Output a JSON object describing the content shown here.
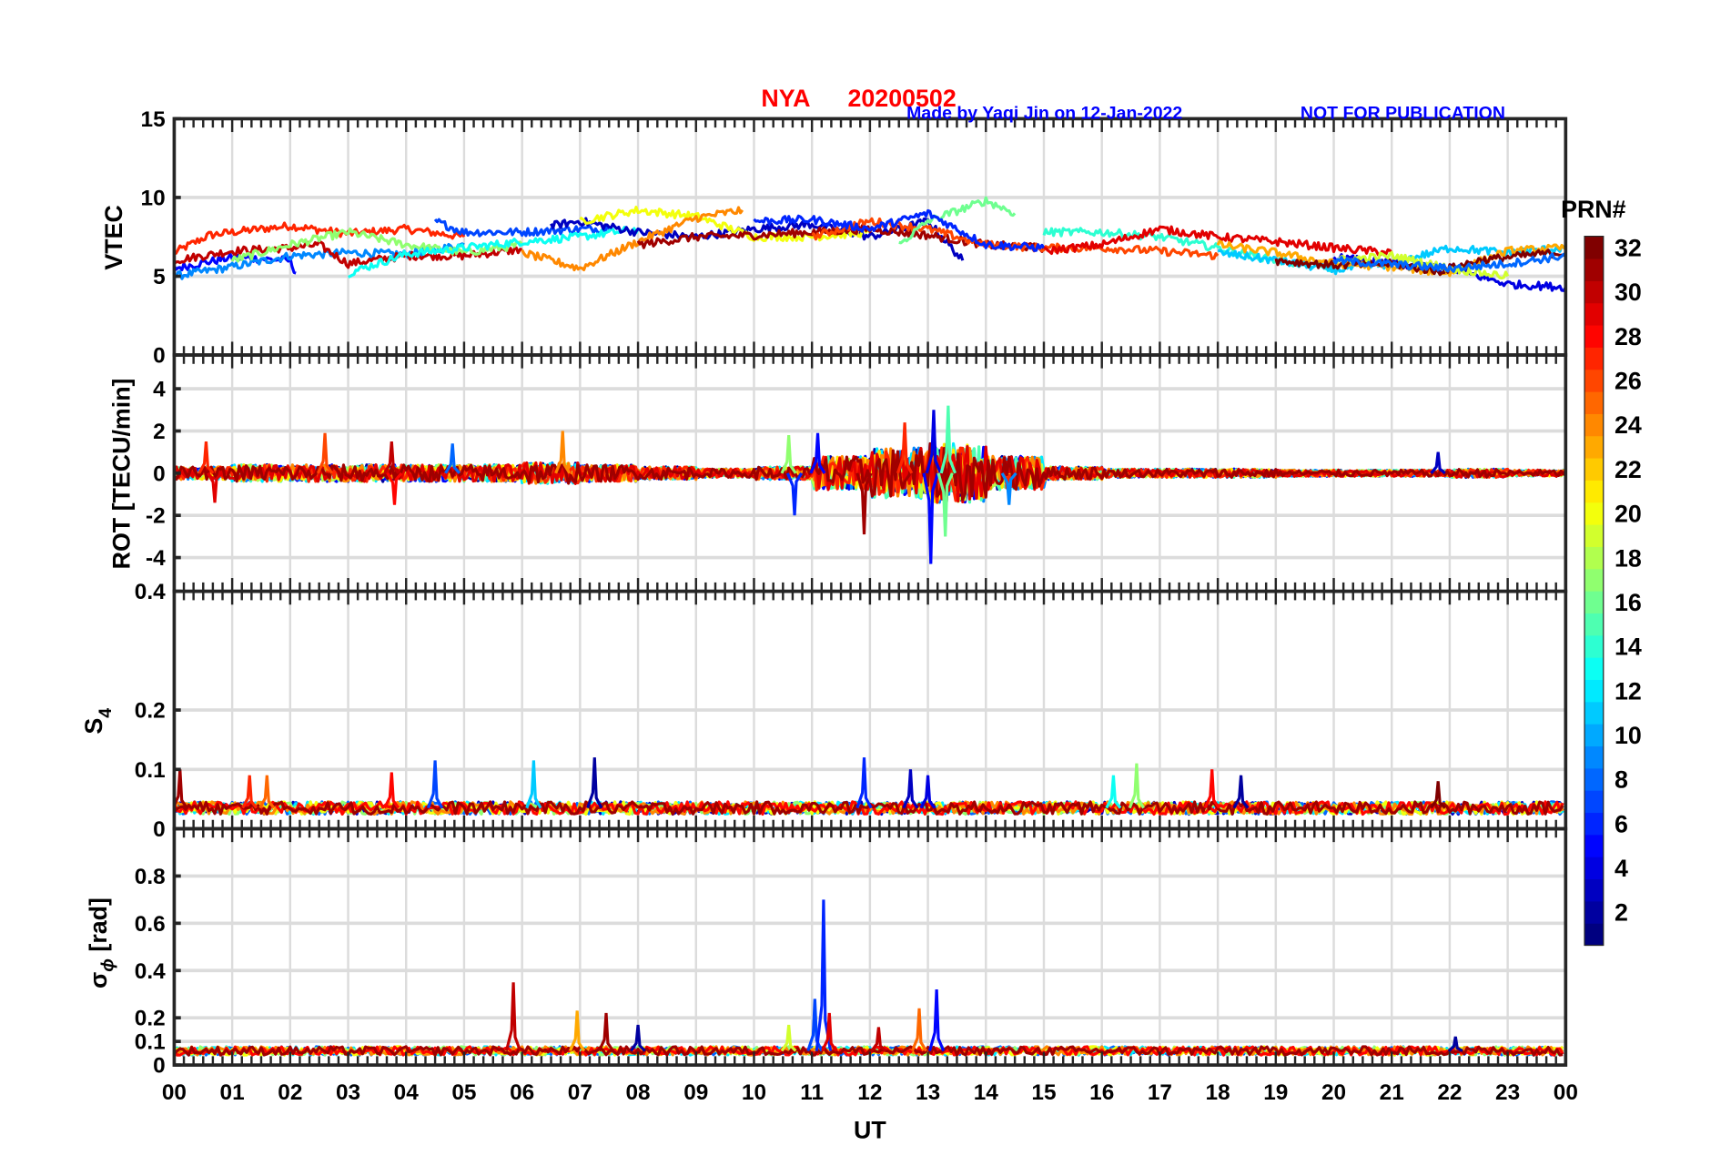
{
  "chart_data": {
    "type": "line",
    "title": {
      "station": "NYA",
      "date": "20200502",
      "credit": "Made by Yaqi Jin on 12-Jan-2022",
      "notice": "NOT FOR PUBLICATION"
    },
    "xlabel": "UT",
    "xlim": [
      0,
      24
    ],
    "xticks": [
      "00",
      "01",
      "02",
      "03",
      "04",
      "05",
      "06",
      "07",
      "08",
      "09",
      "10",
      "11",
      "12",
      "13",
      "14",
      "15",
      "16",
      "17",
      "18",
      "19",
      "20",
      "21",
      "22",
      "23",
      "00"
    ],
    "colorbar": {
      "label": "PRN#",
      "range": [
        1,
        32
      ],
      "ticks": [
        "2",
        "4",
        "6",
        "8",
        "10",
        "12",
        "14",
        "16",
        "18",
        "20",
        "22",
        "24",
        "26",
        "28",
        "30",
        "32"
      ],
      "colormap": "jet"
    },
    "panels": [
      {
        "id": "vtec",
        "ylabel": "VTEC",
        "ylim": [
          0,
          15
        ],
        "yticks": [
          0,
          5,
          10,
          15
        ],
        "ytick_labels": [
          "0",
          "5",
          "10",
          "15"
        ],
        "series": [
          {
            "prn": 27,
            "points": [
              [
                0,
                6.5
              ],
              [
                0.6,
                7.6
              ],
              [
                1,
                7.8
              ],
              [
                2,
                8.2
              ],
              [
                3,
                7.7
              ],
              [
                4,
                8.0
              ],
              [
                5,
                7.5
              ]
            ]
          },
          {
            "prn": 5,
            "points": [
              [
                0,
                5.5
              ],
              [
                1,
                6.2
              ],
              [
                2,
                6.0
              ],
              [
                2.1,
                5.2
              ]
            ]
          },
          {
            "prn": 9,
            "points": [
              [
                0,
                5.0
              ],
              [
                1,
                5.6
              ],
              [
                2,
                6.3
              ],
              [
                3,
                6.5
              ],
              [
                4,
                6.4
              ],
              [
                5,
                7.0
              ]
            ]
          },
          {
            "prn": 30,
            "points": [
              [
                0,
                6.0
              ],
              [
                1,
                6.6
              ],
              [
                2,
                6.8
              ],
              [
                2.5,
                7.0
              ],
              [
                3,
                5.8
              ],
              [
                4,
                6.3
              ],
              [
                5,
                6.3
              ],
              [
                6,
                6.7
              ]
            ]
          },
          {
            "prn": 17,
            "points": [
              [
                1,
                6.0
              ],
              [
                2,
                7.0
              ],
              [
                3,
                7.8
              ],
              [
                4,
                7.0
              ],
              [
                5,
                6.5
              ],
              [
                6,
                7.0
              ]
            ]
          },
          {
            "prn": 7,
            "points": [
              [
                4.5,
                8.5
              ],
              [
                5,
                7.8
              ],
              [
                6,
                7.8
              ],
              [
                7,
                8.0
              ],
              [
                7.5,
                8.0
              ]
            ]
          },
          {
            "prn": 13,
            "points": [
              [
                3,
                5.2
              ],
              [
                4,
                6.4
              ],
              [
                5,
                6.8
              ],
              [
                6,
                7.2
              ],
              [
                7,
                7.5
              ],
              [
                8,
                8.0
              ]
            ]
          },
          {
            "prn": 3,
            "points": [
              [
                6.5,
                8.2
              ],
              [
                7,
                8.5
              ],
              [
                8,
                7.8
              ],
              [
                9,
                7.5
              ],
              [
                10,
                8.0
              ],
              [
                11,
                8.3
              ],
              [
                12,
                7.5
              ],
              [
                13,
                8.5
              ],
              [
                13.6,
                6.0
              ]
            ]
          },
          {
            "prn": 20,
            "points": [
              [
                7,
                8.5
              ],
              [
                8,
                9.2
              ],
              [
                9,
                8.8
              ],
              [
                10,
                7.5
              ],
              [
                11,
                7.5
              ],
              [
                12,
                7.8
              ]
            ]
          },
          {
            "prn": 24,
            "points": [
              [
                6,
                6.5
              ],
              [
                7,
                5.5
              ],
              [
                8,
                7.2
              ],
              [
                9,
                8.7
              ],
              [
                9.8,
                9.2
              ]
            ]
          },
          {
            "prn": 31,
            "points": [
              [
                8,
                7.0
              ],
              [
                9,
                7.5
              ],
              [
                10,
                7.6
              ],
              [
                11,
                7.8
              ],
              [
                12,
                8.0
              ],
              [
                13,
                7.6
              ],
              [
                14,
                7.0
              ],
              [
                15,
                6.8
              ]
            ]
          },
          {
            "prn": 26,
            "points": [
              [
                11,
                7.5
              ],
              [
                12,
                8.5
              ],
              [
                13,
                8.0
              ],
              [
                14,
                7.0
              ],
              [
                15,
                6.8
              ],
              [
                16,
                6.8
              ],
              [
                17,
                6.6
              ],
              [
                18,
                6.3
              ]
            ]
          },
          {
            "prn": 16,
            "points": [
              [
                12.5,
                7.0
              ],
              [
                13,
                8.5
              ],
              [
                14,
                9.8
              ],
              [
                14.5,
                9.0
              ]
            ]
          },
          {
            "prn": 6,
            "points": [
              [
                10,
                8.5
              ],
              [
                11,
                8.6
              ],
              [
                12,
                8.0
              ],
              [
                13,
                9.0
              ],
              [
                14,
                7.0
              ],
              [
                15,
                6.8
              ]
            ]
          },
          {
            "prn": 14,
            "points": [
              [
                15,
                7.8
              ],
              [
                16,
                7.8
              ],
              [
                17,
                7.5
              ],
              [
                18,
                6.8
              ],
              [
                19,
                6.0
              ],
              [
                20,
                5.5
              ]
            ]
          },
          {
            "prn": 29,
            "points": [
              [
                15,
                6.6
              ],
              [
                16,
                7.0
              ],
              [
                17,
                8.0
              ],
              [
                18,
                7.5
              ],
              [
                19,
                7.2
              ],
              [
                20,
                6.8
              ],
              [
                21,
                6.5
              ]
            ]
          },
          {
            "prn": 11,
            "points": [
              [
                18,
                6.5
              ],
              [
                19,
                6.0
              ],
              [
                20,
                5.4
              ],
              [
                21,
                5.8
              ],
              [
                22,
                6.8
              ],
              [
                23,
                6.5
              ],
              [
                24,
                6.8
              ]
            ]
          },
          {
            "prn": 23,
            "points": [
              [
                18,
                7.0
              ],
              [
                19,
                6.5
              ],
              [
                20,
                5.8
              ],
              [
                21,
                5.6
              ],
              [
                22,
                5.2
              ],
              [
                23,
                6.6
              ],
              [
                24,
                6.8
              ]
            ]
          },
          {
            "prn": 4,
            "points": [
              [
                20,
                6.2
              ],
              [
                21,
                5.8
              ],
              [
                22,
                5.5
              ],
              [
                23,
                4.5
              ],
              [
                24,
                4.3
              ]
            ]
          },
          {
            "prn": 32,
            "points": [
              [
                19,
                6.0
              ],
              [
                20,
                5.7
              ],
              [
                21,
                5.8
              ],
              [
                21.8,
                5.3
              ],
              [
                22.5,
                6.0
              ],
              [
                23.5,
                6.4
              ],
              [
                24,
                6.5
              ]
            ]
          },
          {
            "prn": 19,
            "points": [
              [
                20,
                6.0
              ],
              [
                21,
                6.3
              ],
              [
                22,
                5.5
              ],
              [
                23,
                5.0
              ]
            ]
          },
          {
            "prn": 8,
            "points": [
              [
                20,
                6.0
              ],
              [
                22,
                5.5
              ],
              [
                23,
                5.8
              ],
              [
                24,
                6.3
              ]
            ]
          }
        ]
      },
      {
        "id": "rot",
        "ylabel": "ROT [TECU/min]",
        "ylim": [
          -5.6,
          5.6
        ],
        "yticks": [
          -4,
          -2,
          0,
          2,
          4
        ],
        "ytick_labels": [
          "-4",
          "-2",
          "0",
          "2",
          "4"
        ],
        "hourly_amplitude": [
          0.3,
          0.4,
          0.4,
          0.4,
          0.4,
          0.4,
          0.5,
          0.4,
          0.3,
          0.2,
          0.3,
          0.8,
          1.2,
          1.4,
          0.8,
          0.3,
          0.2,
          0.2,
          0.2,
          0.15,
          0.15,
          0.15,
          0.2,
          0.15
        ],
        "prns": [
          2,
          5,
          9,
          12,
          15,
          18,
          21,
          24,
          27,
          29,
          31
        ],
        "spikes": [
          [
            0.55,
            1.5,
            27
          ],
          [
            0.7,
            -1.4,
            29
          ],
          [
            2.6,
            1.9,
            26
          ],
          [
            3.75,
            1.5,
            30
          ],
          [
            3.8,
            -1.5,
            28
          ],
          [
            4.8,
            1.4,
            8
          ],
          [
            6.7,
            2.0,
            24
          ],
          [
            10.6,
            1.8,
            17
          ],
          [
            10.7,
            -2.0,
            6
          ],
          [
            11.1,
            1.9,
            5
          ],
          [
            11.9,
            -2.9,
            31
          ],
          [
            12.6,
            2.4,
            27
          ],
          [
            13.05,
            -4.3,
            5
          ],
          [
            13.1,
            3.0,
            4
          ],
          [
            13.35,
            3.2,
            15
          ],
          [
            13.3,
            -3.0,
            16
          ],
          [
            14.4,
            -1.5,
            9
          ],
          [
            21.8,
            1.0,
            3
          ]
        ]
      },
      {
        "id": "s4",
        "ylabel": "S",
        "ylabel_sub": "4",
        "ylim": [
          0,
          0.4
        ],
        "yticks": [
          0,
          0.1,
          0.2,
          0.4
        ],
        "ytick_labels": [
          "0",
          "0.1",
          "0.2",
          "0.4"
        ],
        "baseline": 0.035,
        "prns": [
          3,
          8,
          12,
          17,
          20,
          24,
          28,
          31
        ],
        "spikes": [
          [
            0.1,
            0.1,
            31
          ],
          [
            1.3,
            0.09,
            27
          ],
          [
            1.6,
            0.09,
            25
          ],
          [
            3.75,
            0.095,
            28
          ],
          [
            4.5,
            0.115,
            7
          ],
          [
            6.2,
            0.115,
            11
          ],
          [
            7.25,
            0.12,
            2
          ],
          [
            11.9,
            0.12,
            6
          ],
          [
            12.7,
            0.1,
            3
          ],
          [
            13,
            0.09,
            4
          ],
          [
            16.6,
            0.11,
            17
          ],
          [
            16.2,
            0.09,
            13
          ],
          [
            17.9,
            0.1,
            28
          ],
          [
            18.4,
            0.09,
            2
          ],
          [
            21.8,
            0.08,
            32
          ]
        ]
      },
      {
        "id": "sigma-phi",
        "ylabel": "σ",
        "ylabel_sub": "ϕ",
        "ylabel_unit": "[rad]",
        "ylim": [
          0,
          1
        ],
        "yticks": [
          0,
          0.1,
          0.2,
          0.4,
          0.6,
          0.8
        ],
        "ytick_labels": [
          "0",
          "0.1",
          "0.2",
          "0.4",
          "0.6",
          "0.8"
        ],
        "baseline": 0.06,
        "prns": [
          8,
          12,
          17,
          20,
          24,
          28,
          31
        ],
        "spikes": [
          [
            5.85,
            0.35,
            30
          ],
          [
            6.95,
            0.23,
            23
          ],
          [
            7.45,
            0.22,
            31
          ],
          [
            8,
            0.17,
            2
          ],
          [
            10.6,
            0.17,
            19
          ],
          [
            11.05,
            0.28,
            7
          ],
          [
            11.2,
            0.7,
            6
          ],
          [
            11.3,
            0.22,
            29
          ],
          [
            12.15,
            0.16,
            30
          ],
          [
            12.85,
            0.24,
            25
          ],
          [
            13.15,
            0.32,
            5
          ],
          [
            22.1,
            0.12,
            2
          ]
        ]
      }
    ]
  },
  "colors": {
    "title": "#ff0000",
    "credit": "#0000ff",
    "grid": "#dcdcdc",
    "axis": "#262626"
  }
}
